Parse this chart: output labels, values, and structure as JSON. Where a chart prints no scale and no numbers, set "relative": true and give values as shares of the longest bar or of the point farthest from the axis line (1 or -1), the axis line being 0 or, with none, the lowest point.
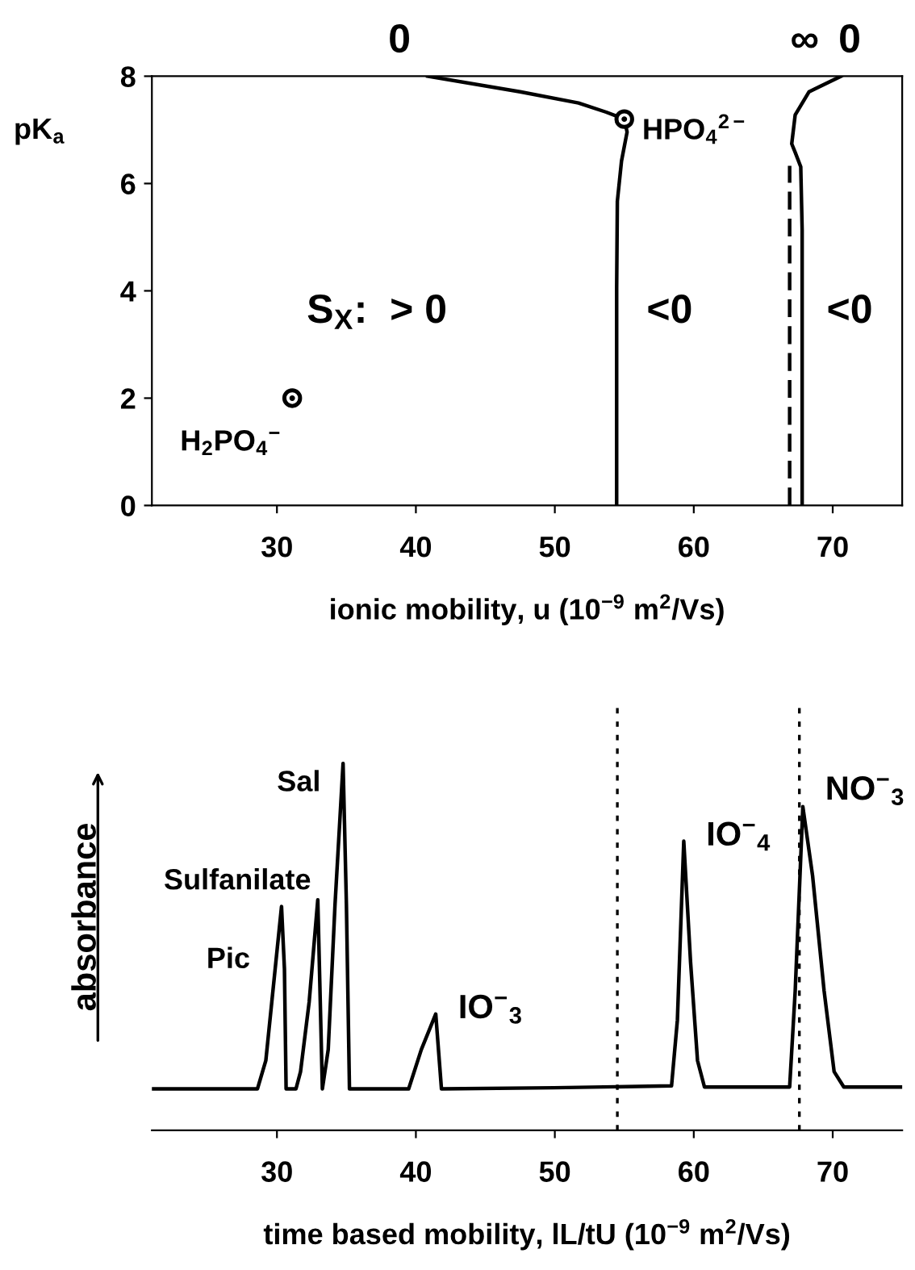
{
  "chart_data": [
    {
      "type": "line",
      "ylabel": "pK$_{a}$",
      "xlabel": "ionic mobility, u (10$^{−9}$ m$^{2}$/Vs)",
      "xlim": [
        21,
        75
      ],
      "ylim": [
        0,
        8
      ],
      "xticks": [
        30,
        40,
        50,
        60,
        70
      ],
      "yticks": [
        0,
        2,
        4,
        6,
        8
      ],
      "grid": false,
      "legend": false,
      "series": [
        {
          "color": "#000000",
          "line_style": "solid",
          "x": [
            40.85,
            47.5,
            51.7,
            53.7,
            55.0,
            55.2,
            54.8,
            54.5,
            54.45,
            54.45
          ],
          "values": [
            8,
            7.71,
            7.5,
            7.33,
            7.2,
            6.96,
            6.42,
            5.67,
            4.05,
            0
          ]
        },
        {
          "color": "#000000",
          "line_style": "solid",
          "x": [
            70.6,
            68.3,
            67.3,
            67.05,
            67.3,
            67.7,
            67.8,
            67.8
          ],
          "values": [
            8,
            7.71,
            7.28,
            6.74,
            6.58,
            6.31,
            5.13,
            0
          ]
        },
        {
          "color": "#000000",
          "line_style": "dashed",
          "x": [
            66.9,
            66.9
          ],
          "values": [
            0,
            6.33
          ]
        },
        {
          "type": "scatter",
          "color": "#000000",
          "marker": "circle",
          "x": [
            55.0,
            31.1
          ],
          "values": [
            7.2,
            2.0
          ]
        }
      ],
      "annotations": [
        {
          "text": "HPO$_{4}$$^{2−}$",
          "x": 55.0,
          "y": 7.2
        },
        {
          "text": "H$_{2}$PO$_{4}$$^{−}$",
          "x": 31.1,
          "y": 2.0
        },
        "S$_{X}$:  > 0",
        "<0",
        "<0",
        "0",
        "∞",
        "0"
      ]
    },
    {
      "type": "line",
      "relative": true,
      "xlabel": "time based mobility, lL/tU (10$^{−9}$ m$^{2}$/Vs)",
      "ylabel": "absorbance",
      "xlim": [
        21,
        75
      ],
      "xticks": [
        30,
        40,
        50,
        60,
        70
      ],
      "tick_labels": "x",
      "grid": false,
      "legend": false,
      "series": [
        {
          "color": "#000000",
          "line_style": "solid",
          "x": [
            21.0,
            28.6,
            29.2,
            29.63,
            30.33,
            30.54,
            30.66,
            31.37,
            31.7,
            32.32,
            32.94,
            33.27,
            33.69,
            34.18,
            34.76,
            35.0,
            35.22,
            39.48,
            40.39,
            41.43,
            41.84,
            49.92,
            58.4,
            58.82,
            59.28,
            59.77,
            60.27,
            60.77,
            66.9,
            67.3,
            67.85,
            68.55,
            69.38,
            70.1,
            70.8,
            75.0
          ],
          "values": [
            0.113,
            0.113,
            0.19,
            0.35,
            0.61,
            0.44,
            0.113,
            0.113,
            0.16,
            0.35,
            0.628,
            0.113,
            0.22,
            0.615,
            1.0,
            0.615,
            0.113,
            0.113,
            0.22,
            0.317,
            0.113,
            0.116,
            0.121,
            0.3,
            0.788,
            0.458,
            0.19,
            0.118,
            0.118,
            0.38,
            0.882,
            0.694,
            0.38,
            0.16,
            0.118,
            0.118
          ]
        }
      ],
      "ref_lines": [
        {
          "axis": "x",
          "value": 54.5,
          "line_style": "dotted",
          "color": "#000000"
        },
        {
          "axis": "x",
          "value": 67.6,
          "line_style": "dotted",
          "color": "#000000"
        }
      ],
      "annotations": [
        {
          "text": "Pic",
          "x": 30.33,
          "y": 0.61
        },
        {
          "text": "Sulfanilate",
          "x": 32.94,
          "y": 0.628
        },
        {
          "text": "Sal",
          "x": 34.76,
          "y": 1.0
        },
        {
          "text": "IO$^{−}$$_{3}$",
          "x": 41.43,
          "y": 0.317
        },
        {
          "text": "IO$^{−}$$_{4}$",
          "x": 59.28,
          "y": 0.788
        },
        {
          "text": "NO$^{−}$$_{3}$",
          "x": 67.85,
          "y": 0.882
        }
      ]
    }
  ]
}
